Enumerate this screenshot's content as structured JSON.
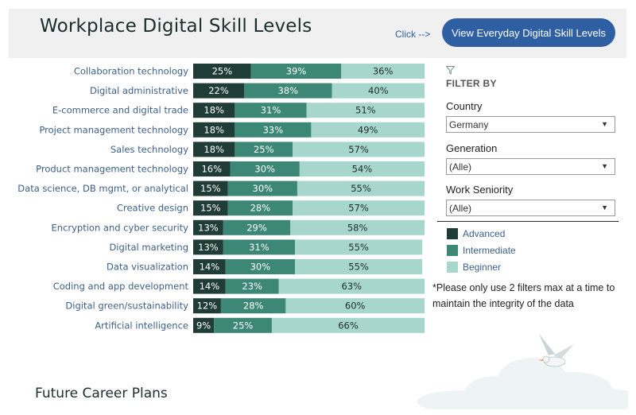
{
  "header": {
    "title": "Workplace Digital Skill Levels",
    "click_hint": "Click -->",
    "button_label": "View Everyday Digital Skill Levels"
  },
  "filters": {
    "icon": "funnel-icon",
    "title": "FILTER BY",
    "country": {
      "label": "Country",
      "value": "Germany"
    },
    "generation": {
      "label": "Generation",
      "value": "(Alle)"
    },
    "seniority": {
      "label": "Work Seniority",
      "value": "(Alle)"
    }
  },
  "legend": [
    {
      "label": "Advanced",
      "color": "#1f3d36"
    },
    {
      "label": "Intermediate",
      "color": "#3d8777"
    },
    {
      "label": "Beginner",
      "color": "#a6d6cc"
    }
  ],
  "note": "*Please only use 2 filters max at a time to maintain the integrity of the data",
  "section": {
    "title": "Future Career Plans"
  },
  "chart_data": {
    "type": "bar",
    "orientation": "horizontal",
    "stacked": true,
    "unit": "%",
    "title": "Workplace Digital Skill Levels",
    "xlim": [
      0,
      100
    ],
    "categories": [
      "Collaboration technology",
      "Digital administrative",
      "E-commerce and digital trade",
      "Project management technology",
      "Sales technology",
      "Product management technology",
      "Data science, DB mgmt, or analytical",
      "Creative design",
      "Encryption and cyber security",
      "Digital marketing",
      "Data visualization",
      "Coding and app development",
      "Digital green/sustainability",
      "Artificial intelligence"
    ],
    "series": [
      {
        "name": "Advanced",
        "color": "#1f3d36",
        "label_color": "#ffffff",
        "values": [
          25,
          22,
          18,
          18,
          18,
          16,
          15,
          15,
          13,
          13,
          14,
          14,
          12,
          9
        ]
      },
      {
        "name": "Intermediate",
        "color": "#3d8777",
        "label_color": "#ffffff",
        "values": [
          39,
          38,
          31,
          33,
          25,
          30,
          30,
          28,
          29,
          31,
          30,
          23,
          28,
          25
        ]
      },
      {
        "name": "Beginner",
        "color": "#a6d6cc",
        "label_color": "#1e2e2a",
        "values": [
          36,
          40,
          51,
          49,
          57,
          54,
          55,
          57,
          58,
          55,
          55,
          63,
          60,
          66
        ]
      }
    ]
  }
}
